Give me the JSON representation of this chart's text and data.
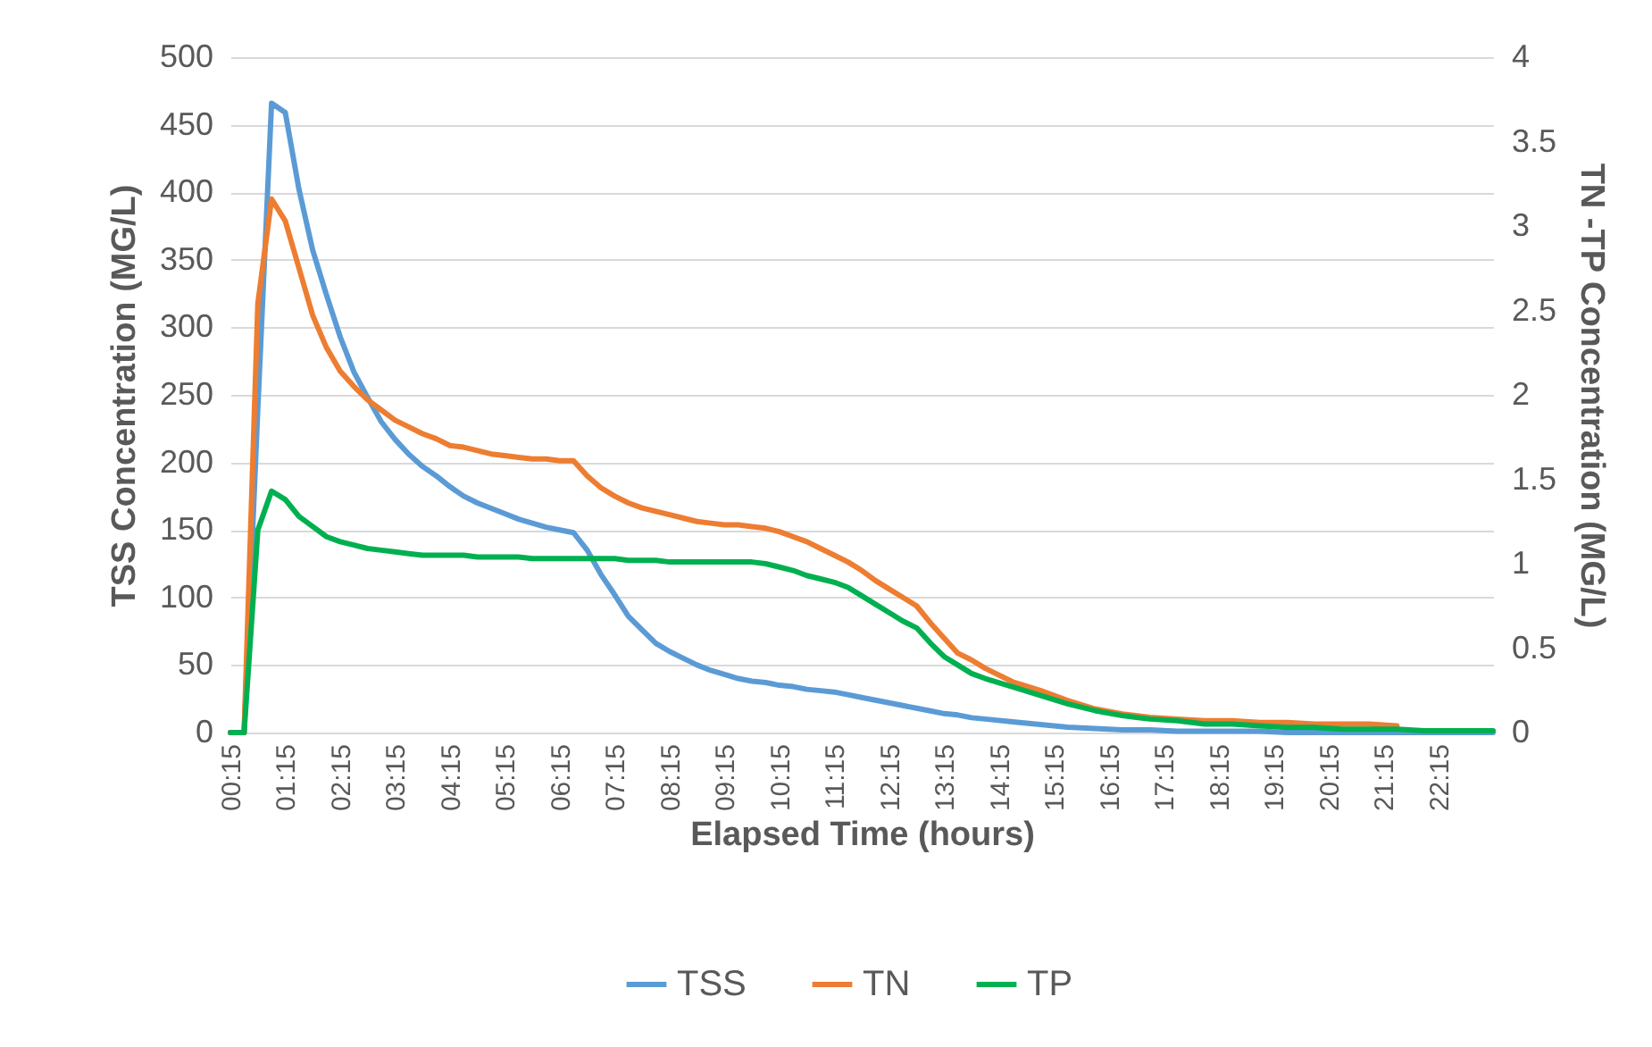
{
  "chart_data": {
    "type": "line",
    "xlabel": "Elapsed Time (hours)",
    "ylabel": "TSS Concentration (MG/L)",
    "y2label": "TN -TP Concentration (MG/L)",
    "x": [
      0.25,
      0.5,
      0.75,
      1,
      1.25,
      1.5,
      1.75,
      2,
      2.25,
      2.5,
      2.75,
      3,
      3.25,
      3.5,
      3.75,
      4,
      4.25,
      4.5,
      4.75,
      5,
      5.25,
      5.5,
      5.75,
      6,
      6.25,
      6.5,
      6.75,
      7,
      7.25,
      7.5,
      7.75,
      8,
      8.25,
      8.5,
      8.75,
      9,
      9.25,
      9.5,
      9.75,
      10,
      10.25,
      10.5,
      10.75,
      11,
      11.25,
      11.5,
      11.75,
      12,
      12.25,
      12.5,
      12.75,
      13,
      13.25,
      13.5,
      13.75,
      14,
      14.5,
      15,
      15.5,
      16,
      16.5,
      17,
      17.5,
      18,
      18.5,
      19,
      19.5,
      20,
      20.5,
      21,
      21.5,
      22,
      22.5,
      23,
      23.25
    ],
    "series": [
      {
        "name": "TSS",
        "color": "#5b9bd5",
        "values": [
          0,
          0,
          240,
          466,
          459,
          402,
          357,
          324,
          293,
          267,
          248,
          230,
          217,
          206,
          197,
          190,
          182,
          175,
          170,
          166,
          162,
          158,
          155,
          152,
          150,
          148,
          135,
          117,
          102,
          86,
          76,
          66,
          60,
          55,
          50,
          46,
          43,
          40,
          38,
          37,
          35,
          34,
          32,
          31,
          30,
          28,
          26,
          24,
          22,
          20,
          18,
          16,
          14,
          13,
          11,
          10,
          8,
          6,
          4,
          3,
          2,
          2,
          1,
          1,
          1,
          1,
          0,
          0,
          0,
          0,
          0,
          0,
          0,
          0,
          0
        ]
      },
      {
        "name": "TN",
        "color": "#ed7d31",
        "axis": "y2",
        "values": [
          0,
          0,
          2.54,
          3.16,
          3.03,
          2.75,
          2.47,
          2.28,
          2.14,
          2.05,
          1.97,
          1.91,
          1.85,
          1.81,
          1.77,
          1.74,
          1.7,
          1.69,
          1.67,
          1.65,
          1.64,
          1.63,
          1.62,
          1.62,
          1.61,
          1.61,
          1.52,
          1.45,
          1.4,
          1.36,
          1.33,
          1.31,
          1.29,
          1.27,
          1.25,
          1.24,
          1.23,
          1.23,
          1.22,
          1.21,
          1.19,
          1.16,
          1.13,
          1.09,
          1.05,
          1.01,
          0.96,
          0.9,
          0.85,
          0.8,
          0.75,
          0.65,
          0.56,
          0.47,
          0.43,
          0.38,
          0.3,
          0.25,
          0.19,
          0.14,
          0.11,
          0.09,
          0.08,
          0.07,
          0.07,
          0.06,
          0.06,
          0.05,
          0.05,
          0.05,
          0.04,
          null,
          null,
          null,
          null
        ]
      },
      {
        "name": "TP",
        "color": "#00b050",
        "axis": "y2",
        "values": [
          0,
          0,
          1.2,
          1.43,
          1.38,
          1.28,
          1.22,
          1.16,
          1.13,
          1.11,
          1.09,
          1.08,
          1.07,
          1.06,
          1.05,
          1.05,
          1.05,
          1.05,
          1.04,
          1.04,
          1.04,
          1.04,
          1.03,
          1.03,
          1.03,
          1.03,
          1.03,
          1.03,
          1.03,
          1.02,
          1.02,
          1.02,
          1.01,
          1.01,
          1.01,
          1.01,
          1.01,
          1.01,
          1.01,
          1,
          0.98,
          0.96,
          0.93,
          0.91,
          0.89,
          0.86,
          0.81,
          0.76,
          0.71,
          0.66,
          0.62,
          0.53,
          0.45,
          0.4,
          0.35,
          0.32,
          0.27,
          0.22,
          0.17,
          0.13,
          0.1,
          0.08,
          0.07,
          0.05,
          0.05,
          0.04,
          0.03,
          0.03,
          0.02,
          0.02,
          0.02,
          0.01,
          0.01,
          0.01,
          0.01
        ]
      }
    ],
    "xlim": [
      0.25,
      23.25
    ],
    "xticks": [
      {
        "value": 0.25,
        "label": "00:15"
      },
      {
        "value": 1.25,
        "label": "01:15"
      },
      {
        "value": 2.25,
        "label": "02:15"
      },
      {
        "value": 3.25,
        "label": "03:15"
      },
      {
        "value": 4.25,
        "label": "04:15"
      },
      {
        "value": 5.25,
        "label": "05:15"
      },
      {
        "value": 6.25,
        "label": "06:15"
      },
      {
        "value": 7.25,
        "label": "07:15"
      },
      {
        "value": 8.25,
        "label": "08:15"
      },
      {
        "value": 9.25,
        "label": "09:15"
      },
      {
        "value": 10.25,
        "label": "10:15"
      },
      {
        "value": 11.25,
        "label": "11:15"
      },
      {
        "value": 12.25,
        "label": "12:15"
      },
      {
        "value": 13.25,
        "label": "13:15"
      },
      {
        "value": 14.25,
        "label": "14:15"
      },
      {
        "value": 15.25,
        "label": "15:15"
      },
      {
        "value": 16.25,
        "label": "16:15"
      },
      {
        "value": 17.25,
        "label": "17:15"
      },
      {
        "value": 18.25,
        "label": "18:15"
      },
      {
        "value": 19.25,
        "label": "19:15"
      },
      {
        "value": 20.25,
        "label": "20:15"
      },
      {
        "value": 21.25,
        "label": "21:15"
      },
      {
        "value": 22.25,
        "label": "22:15"
      }
    ],
    "ylim": [
      0,
      500
    ],
    "yticks": [
      0,
      50,
      100,
      150,
      200,
      250,
      300,
      350,
      400,
      450,
      500
    ],
    "y2lim": [
      0,
      4
    ],
    "y2ticks": [
      0,
      0.5,
      1,
      1.5,
      2,
      2.5,
      3,
      3.5,
      4
    ],
    "grid": "y",
    "legend": "bottom",
    "line_style": "solid"
  }
}
